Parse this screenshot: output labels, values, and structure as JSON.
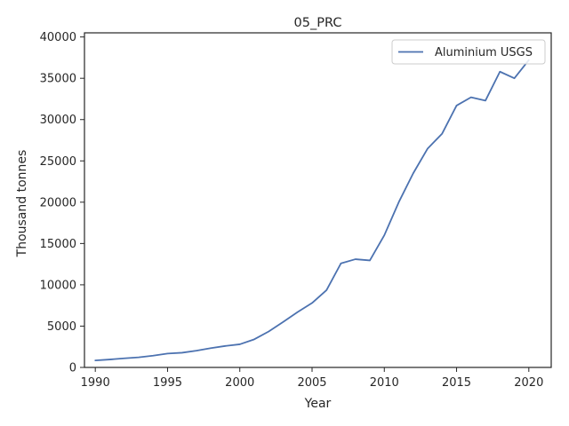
{
  "chart_data": {
    "type": "line",
    "title": "05_PRC",
    "xlabel": "Year",
    "ylabel": "Thousand tonnes",
    "xlim": [
      1989.25,
      2021.55
    ],
    "ylim": [
      0,
      40500
    ],
    "x_ticks": [
      1990,
      1995,
      2000,
      2005,
      2010,
      2015,
      2020
    ],
    "y_ticks": [
      0,
      5000,
      10000,
      15000,
      20000,
      25000,
      30000,
      35000,
      40000
    ],
    "grid": false,
    "legend_position": "top-right",
    "series": [
      {
        "name": "Aluminium USGS",
        "color": "#4c72b0",
        "x": [
          1990,
          1991,
          1992,
          1993,
          1994,
          1995,
          1996,
          1997,
          1998,
          1999,
          2000,
          2001,
          2002,
          2003,
          2004,
          2005,
          2006,
          2007,
          2008,
          2009,
          2010,
          2011,
          2012,
          2013,
          2014,
          2015,
          2016,
          2017,
          2018,
          2019,
          2020
        ],
        "y": [
          850,
          960,
          1100,
          1220,
          1420,
          1680,
          1780,
          2030,
          2340,
          2600,
          2800,
          3400,
          4350,
          5500,
          6700,
          7800,
          9350,
          12600,
          13100,
          12950,
          16000,
          20000,
          23500,
          26500,
          28300,
          31700,
          32700,
          32300,
          35800,
          35000,
          37200
        ]
      }
    ]
  }
}
